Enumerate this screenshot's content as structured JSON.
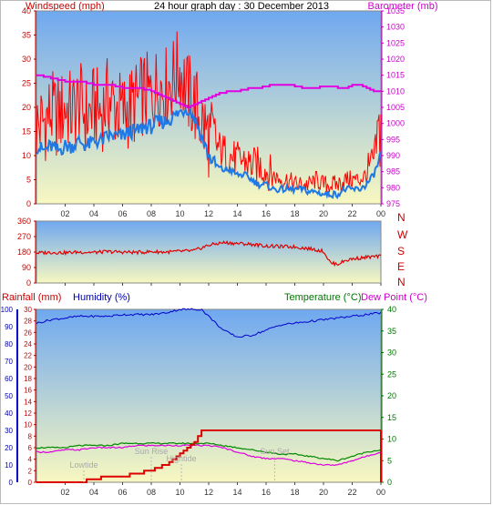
{
  "header": {
    "wind_label": "Windspeed (mph)",
    "title": "24 hour graph day : 30 December 2013",
    "baro_label": "Barometer (mb)"
  },
  "colors": {
    "wind_gust": "#ff0000",
    "wind_avg": "#1e78e6",
    "barometer": "#e000e0",
    "direction": "#e00000",
    "rain_text": "#cc0000",
    "humidity_text": "#0000aa",
    "temperature_text": "#007700",
    "dewpoint_text": "#cc00cc",
    "sky_top": "#6fa8f0",
    "sky_bottom": "#f8f8c0"
  },
  "x_ticks": [
    "02",
    "04",
    "06",
    "08",
    "10",
    "12",
    "14",
    "16",
    "18",
    "20",
    "22",
    "00"
  ],
  "chart_data": [
    {
      "type": "line",
      "title": "24 hour graph day : 30 December 2013",
      "xlabel": "",
      "ylabel": "Windspeed (mph)",
      "y2label": "Barometer (mb)",
      "x_hours": [
        0,
        0.5,
        1,
        1.5,
        2,
        2.5,
        3,
        3.5,
        4,
        4.5,
        5,
        5.5,
        6,
        6.5,
        7,
        7.5,
        8,
        8.5,
        9,
        9.5,
        10,
        10.5,
        11,
        11.5,
        12,
        12.5,
        13,
        13.5,
        14,
        14.5,
        15,
        15.5,
        16,
        16.5,
        17,
        17.5,
        18,
        18.5,
        19,
        19.5,
        20,
        20.5,
        21,
        21.5,
        22,
        22.5,
        23,
        23.5,
        24
      ],
      "ylim": [
        0,
        40
      ],
      "y2lim": [
        975,
        1035
      ],
      "yticks": [
        0,
        5,
        10,
        15,
        20,
        25,
        30,
        35,
        40
      ],
      "y2ticks": [
        975,
        980,
        985,
        990,
        995,
        1000,
        1005,
        1010,
        1015,
        1020,
        1025,
        1030,
        1035
      ],
      "series": [
        {
          "axis": "left",
          "values": [
            16,
            17,
            19,
            18,
            20,
            19,
            21,
            18,
            20,
            19,
            22,
            20,
            19,
            20,
            21,
            23,
            22,
            25,
            24,
            26,
            28,
            23,
            21,
            17,
            14,
            12,
            11,
            10,
            9,
            9,
            8,
            8,
            7,
            6,
            5,
            5,
            4,
            4,
            4,
            5,
            4,
            4,
            4,
            5,
            5,
            5,
            6,
            9,
            16
          ]
        },
        {
          "axis": "left",
          "values": [
            12,
            11,
            12,
            11,
            12,
            12,
            13,
            12,
            13,
            13,
            14,
            14,
            14,
            15,
            15,
            16,
            16,
            17,
            17,
            18,
            19,
            20,
            18,
            14,
            10,
            8,
            7,
            7,
            6,
            6,
            5,
            4,
            4,
            3,
            3,
            3,
            3,
            3,
            2.5,
            2.5,
            2,
            2,
            2,
            3,
            3,
            3,
            4,
            6,
            10
          ]
        },
        {
          "axis": "right",
          "values": [
            1015,
            1014.5,
            1014,
            1013.5,
            1013,
            1013,
            1013,
            1012.5,
            1012,
            1012,
            1012,
            1011.5,
            1011,
            1011,
            1011,
            1010.5,
            1010,
            1009,
            1008,
            1007,
            1006,
            1005,
            1006,
            1007,
            1008,
            1009,
            1009.5,
            1010,
            1010,
            1010.5,
            1011,
            1011,
            1011.5,
            1012,
            1012,
            1012,
            1011.5,
            1011,
            1011,
            1011,
            1011.5,
            1011.5,
            1011,
            1011,
            1012,
            1012,
            1011,
            1010,
            1010
          ]
        }
      ]
    },
    {
      "type": "line",
      "ylim": [
        0,
        360
      ],
      "yticks": [
        0,
        90,
        180,
        270,
        360
      ],
      "direction_labels": [
        "N",
        "W",
        "S",
        "E",
        "N"
      ],
      "x_hours": [
        0,
        1,
        2,
        3,
        4,
        5,
        6,
        7,
        8,
        9,
        10,
        11,
        12,
        13,
        14,
        15,
        16,
        17,
        18,
        19,
        20,
        20.5,
        21,
        21.5,
        22,
        23,
        24
      ],
      "series": [
        {
          "values": [
            175,
            178,
            176,
            180,
            178,
            182,
            180,
            178,
            182,
            180,
            184,
            188,
            220,
            235,
            230,
            225,
            215,
            212,
            210,
            200,
            185,
            115,
            110,
            130,
            140,
            150,
            155
          ]
        }
      ]
    },
    {
      "type": "line",
      "title": "",
      "ylabel": "Rainfall (mm)",
      "ylabel_humidity": "Humidity (%)",
      "y2label": "Temperature (°C)",
      "y2label_dew": "Dew Point (°C)",
      "ylim": [
        0,
        100
      ],
      "rain_ylim": [
        0,
        30
      ],
      "y2lim": [
        0,
        40
      ],
      "yticks": [
        0,
        10,
        20,
        30,
        40,
        50,
        60,
        70,
        80,
        90,
        100
      ],
      "rain_yticks": [
        0,
        2,
        4,
        6,
        8,
        10,
        12,
        14,
        16,
        18,
        20,
        22,
        24,
        26,
        28,
        30
      ],
      "y2ticks": [
        0,
        5,
        10,
        15,
        20,
        25,
        30,
        35,
        40
      ],
      "annotations": [
        "Lowtide",
        "Sun Rise",
        "Hightide",
        "Sun Set"
      ],
      "x_hours": [
        0,
        1,
        2,
        3,
        4,
        5,
        6,
        7,
        8,
        9,
        10,
        11,
        11.5,
        12,
        13,
        14,
        15,
        16,
        17,
        18,
        19,
        20,
        21,
        22,
        23,
        24
      ],
      "series": [
        {
          "axis": "humidity",
          "values": [
            92,
            94,
            95,
            96,
            96,
            96,
            97,
            97,
            97,
            98,
            100,
            100,
            100,
            96,
            88,
            84,
            85,
            88,
            91,
            92,
            93,
            94,
            95,
            96,
            97,
            98
          ]
        },
        {
          "axis": "rain",
          "values": [
            0,
            0,
            0,
            0,
            0.5,
            1,
            1,
            1.5,
            2,
            3,
            5,
            7,
            9,
            9,
            9,
            9,
            9,
            9,
            9,
            9,
            9,
            9,
            9,
            9,
            9,
            9
          ]
        },
        {
          "axis": "temp",
          "values": [
            8,
            8,
            8,
            8.5,
            8.5,
            8.5,
            9,
            9,
            9,
            9,
            9,
            9,
            9,
            9,
            8.5,
            8,
            7.5,
            7,
            6.5,
            6.5,
            6,
            5.5,
            5,
            6,
            7,
            7.5
          ]
        },
        {
          "axis": "temp",
          "values": [
            7,
            7,
            7.5,
            7.5,
            8,
            8,
            8,
            8.5,
            8.5,
            8.5,
            8.5,
            8.5,
            8.5,
            8.5,
            8,
            7,
            6,
            5.5,
            5.5,
            5,
            4.5,
            4,
            4,
            5,
            6,
            7
          ]
        }
      ]
    }
  ],
  "lower_labels": {
    "rainfall": "Rainfall (mm)",
    "humidity": "Humidity (%)",
    "temperature": "Temperature (°C)",
    "dewpoint": "Dew Point (°C)"
  }
}
